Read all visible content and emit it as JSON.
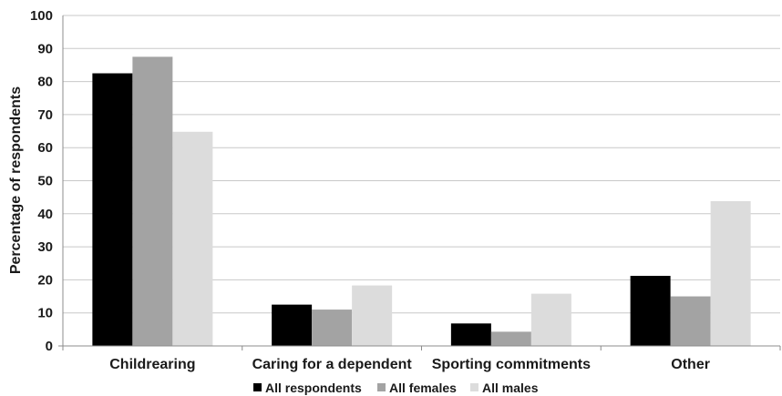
{
  "chart_data": {
    "type": "bar",
    "categories": [
      "Childrearing",
      "Caring for a dependent",
      "Sporting commitments",
      "Other"
    ],
    "series": [
      {
        "name": "All respondents",
        "color": "#000000",
        "values": [
          82.5,
          12.5,
          6.8,
          21.2
        ]
      },
      {
        "name": "All females",
        "color": "#a3a3a3",
        "values": [
          87.5,
          11.0,
          4.3,
          15.0
        ]
      },
      {
        "name": "All males",
        "color": "#dcdcdc",
        "values": [
          64.8,
          18.3,
          15.8,
          43.8
        ]
      }
    ],
    "ylabel": "Percentage of respondents",
    "ylim": [
      0,
      100
    ],
    "yticks": [
      0,
      10,
      20,
      30,
      40,
      50,
      60,
      70,
      80,
      90,
      100
    ],
    "grid": true,
    "legend_position": "bottom"
  }
}
